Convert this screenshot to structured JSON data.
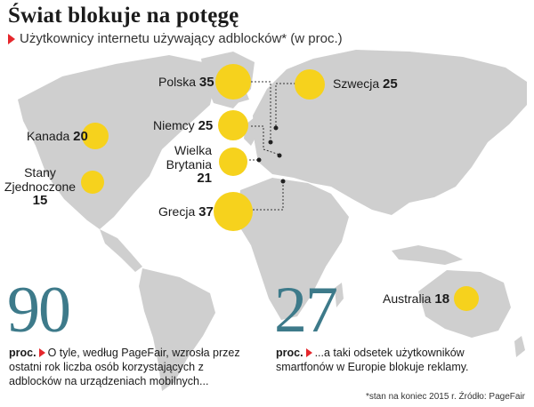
{
  "title": "Świat blokuje na potęgę",
  "subtitle": "Użytkownicy internetu używający adblocków* (w proc.)",
  "colors": {
    "bubble": "#f6d21d",
    "land": "#cfcfcf",
    "accent": "#e5272c",
    "big_number": "#3d7a8a"
  },
  "countries": [
    {
      "name": "Polska",
      "value": 35
    },
    {
      "name": "Szwecja",
      "value": 25
    },
    {
      "name": "Niemcy",
      "value": 25
    },
    {
      "name": "Kanada",
      "value": 20
    },
    {
      "name": "Wielka Brytania",
      "name_line1": "Wielka",
      "name_line2": "Brytania",
      "value": 21
    },
    {
      "name": "Stany Zjednoczone",
      "name_line1": "Stany",
      "name_line2": "Zjednoczone",
      "value": 15
    },
    {
      "name": "Grecja",
      "value": 37
    },
    {
      "name": "Australia",
      "value": 18
    }
  ],
  "facts": [
    {
      "number": "90",
      "prefix": "proc.",
      "text": "O tyle, według PageFair, wzrosła przez ostatni rok liczba osób korzystających z adblocków na urządzeniach mobilnych..."
    },
    {
      "number": "27",
      "prefix": "proc.",
      "text": "...a taki odsetek użytkowników smartfonów w Europie blokuje reklamy."
    }
  ],
  "footnote": "*stan na koniec 2015 r. Źródło: PageFair"
}
